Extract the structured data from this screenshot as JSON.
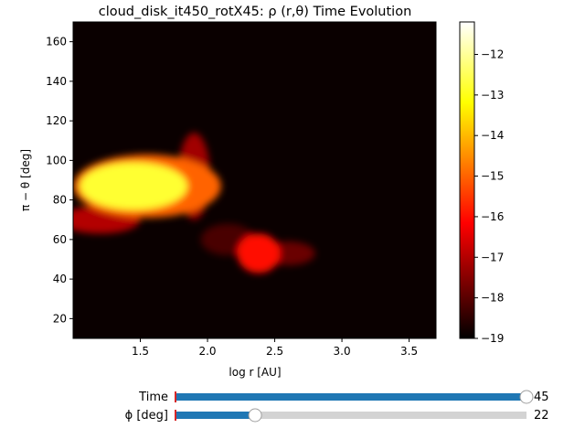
{
  "chart_data": {
    "type": "heatmap",
    "title": "cloud_disk_it450_rotX45: ρ (r,θ) Time Evolution",
    "xlabel": "log r [AU]",
    "ylabel": "π − θ [deg]",
    "xlim": [
      1.0,
      3.7
    ],
    "ylim": [
      10,
      170
    ],
    "xticks": [
      1.5,
      2.0,
      2.5,
      3.0,
      3.5
    ],
    "xtick_labels": [
      "1.5",
      "2.0",
      "2.5",
      "3.0",
      "3.5"
    ],
    "yticks": [
      20,
      40,
      60,
      80,
      100,
      120,
      140,
      160
    ],
    "ytick_labels": [
      "20",
      "40",
      "60",
      "80",
      "100",
      "120",
      "140",
      "160"
    ],
    "colormap": "hot",
    "background_value": -19,
    "colorbar": {
      "range": [
        -19,
        -11.2
      ],
      "ticks": [
        -19,
        -18,
        -17,
        -16,
        -15,
        -14,
        -13,
        -12
      ],
      "tick_labels": [
        "−19",
        "−18",
        "−17",
        "−16",
        "−15",
        "−14",
        "−13",
        "−12"
      ]
    },
    "features": [
      {
        "shape": "ellipse",
        "cx": 1.45,
        "cy": 87,
        "rx": 0.4,
        "ry": 12,
        "value": -12.8
      },
      {
        "shape": "ellipse",
        "cx": 1.55,
        "cy": 87,
        "rx": 0.55,
        "ry": 16,
        "value": -15.0
      },
      {
        "shape": "ellipse",
        "cx": 1.9,
        "cy": 92,
        "rx": 0.12,
        "ry": 22,
        "value": -17.2
      },
      {
        "shape": "ellipse",
        "cx": 1.2,
        "cy": 70,
        "rx": 0.3,
        "ry": 7,
        "value": -17.0
      },
      {
        "shape": "ellipse",
        "cx": 2.38,
        "cy": 53,
        "rx": 0.16,
        "ry": 10,
        "value": -16.0
      },
      {
        "shape": "ellipse",
        "cx": 2.6,
        "cy": 53,
        "rx": 0.2,
        "ry": 6,
        "value": -17.8
      },
      {
        "shape": "ellipse",
        "cx": 2.15,
        "cy": 60,
        "rx": 0.2,
        "ry": 8,
        "value": -18.2
      }
    ]
  },
  "sliders": {
    "time": {
      "label": "Time",
      "value_text": "45",
      "fraction": 1.0
    },
    "phi": {
      "label": "ϕ [deg]",
      "value_text": "22",
      "fraction": 0.2268
    }
  },
  "colors": {
    "slider_fill": "#1f77b4",
    "slider_track": "#d3d3d3",
    "slider_marker": "#d62728",
    "slider_handle": "#ffffff"
  }
}
